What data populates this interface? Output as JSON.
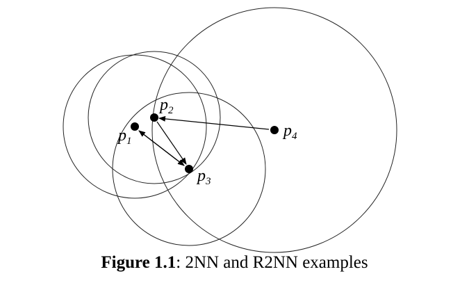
{
  "points": [
    {
      "id": "p1",
      "letter": "p",
      "sub": "1"
    },
    {
      "id": "p2",
      "letter": "p",
      "sub": "2"
    },
    {
      "id": "p3",
      "letter": "p",
      "sub": "3"
    },
    {
      "id": "p4",
      "letter": "p",
      "sub": "4"
    }
  ],
  "caption": {
    "figure_number": "Figure 1.1",
    "separator": ":",
    "text": " 2NN and R2NN examples"
  }
}
